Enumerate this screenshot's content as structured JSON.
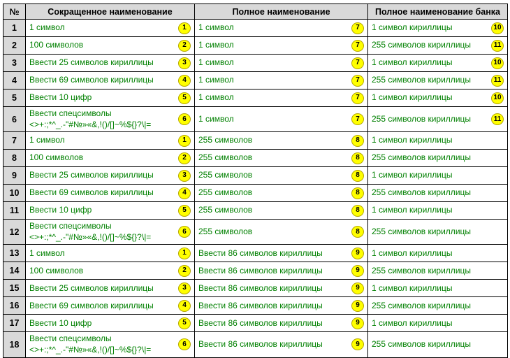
{
  "table": {
    "headers": [
      "№",
      "Сокращенное наименование",
      "Полное наименование",
      "Полное наименование банка"
    ],
    "rows": [
      {
        "num": "1",
        "tall": false,
        "short": {
          "text": "1 символ",
          "badge": "1"
        },
        "full": {
          "text": "1 символ",
          "badge": "7"
        },
        "bank": {
          "text": "1 символ кириллицы",
          "badge": "10"
        }
      },
      {
        "num": "2",
        "tall": false,
        "short": {
          "text": "100 символов",
          "badge": "2"
        },
        "full": {
          "text": "1 символ",
          "badge": "7"
        },
        "bank": {
          "text": "255 символов кириллицы",
          "badge": "11"
        }
      },
      {
        "num": "3",
        "tall": false,
        "short": {
          "text": "Ввести 25 символов кириллицы",
          "badge": "3"
        },
        "full": {
          "text": "1 символ",
          "badge": "7"
        },
        "bank": {
          "text": "1 символ кириллицы",
          "badge": "10"
        }
      },
      {
        "num": "4",
        "tall": false,
        "short": {
          "text": "Ввести 69 символов кириллицы",
          "badge": "4"
        },
        "full": {
          "text": "1 символ",
          "badge": "7"
        },
        "bank": {
          "text": "255 символов кириллицы",
          "badge": "11"
        }
      },
      {
        "num": "5",
        "tall": false,
        "short": {
          "text": "Ввести 10 цифр",
          "badge": "5"
        },
        "full": {
          "text": "1 символ",
          "badge": "7"
        },
        "bank": {
          "text": "1 символ кириллицы",
          "badge": "10"
        }
      },
      {
        "num": "6",
        "tall": true,
        "short": {
          "text": "Ввести спецсимволы\n<>+:;*^_.-\"#№»«&,!()/[]~%${}?\\|=",
          "badge": "6"
        },
        "full": {
          "text": "1 символ",
          "badge": "7"
        },
        "bank": {
          "text": "255 символов кириллицы",
          "badge": "11"
        }
      },
      {
        "num": "7",
        "tall": false,
        "short": {
          "text": "1 символ",
          "badge": "1"
        },
        "full": {
          "text": "255 символов",
          "badge": "8"
        },
        "bank": {
          "text": "1 символ кириллицы"
        }
      },
      {
        "num": "8",
        "tall": false,
        "short": {
          "text": "100 символов",
          "badge": "2"
        },
        "full": {
          "text": "255 символов",
          "badge": "8"
        },
        "bank": {
          "text": "255 символов кириллицы"
        }
      },
      {
        "num": "9",
        "tall": false,
        "short": {
          "text": "Ввести 25 символов кириллицы",
          "badge": "3"
        },
        "full": {
          "text": "255 символов",
          "badge": "8"
        },
        "bank": {
          "text": "1 символ кириллицы"
        }
      },
      {
        "num": "10",
        "tall": false,
        "short": {
          "text": "Ввести 69 символов кириллицы",
          "badge": "4"
        },
        "full": {
          "text": "255 символов",
          "badge": "8"
        },
        "bank": {
          "text": "255 символов кириллицы"
        }
      },
      {
        "num": "11",
        "tall": false,
        "short": {
          "text": "Ввести 10 цифр",
          "badge": "5"
        },
        "full": {
          "text": "255 символов",
          "badge": "8"
        },
        "bank": {
          "text": "1 символ кириллицы"
        }
      },
      {
        "num": "12",
        "tall": true,
        "short": {
          "text": "Ввести спецсимволы\n<>+:;*^_.-\"#№»«&,!()/[]~%${}?\\|=",
          "badge": "6"
        },
        "full": {
          "text": "255 символов",
          "badge": "8"
        },
        "bank": {
          "text": "255 символов кириллицы"
        }
      },
      {
        "num": "13",
        "tall": false,
        "short": {
          "text": "1 символ",
          "badge": "1"
        },
        "full": {
          "text": "Ввести 86 символов кириллицы",
          "badge": "9"
        },
        "bank": {
          "text": "1 символ кириллицы"
        }
      },
      {
        "num": "14",
        "tall": false,
        "short": {
          "text": "100 символов",
          "badge": "2"
        },
        "full": {
          "text": "Ввести 86 символов кириллицы",
          "badge": "9"
        },
        "bank": {
          "text": "255 символов кириллицы"
        }
      },
      {
        "num": "15",
        "tall": false,
        "short": {
          "text": "Ввести 25 символов кириллицы",
          "badge": "3"
        },
        "full": {
          "text": "Ввести 86 символов кириллицы",
          "badge": "9"
        },
        "bank": {
          "text": "1 символ кириллицы"
        }
      },
      {
        "num": "16",
        "tall": false,
        "short": {
          "text": "Ввести 69 символов кириллицы",
          "badge": "4"
        },
        "full": {
          "text": "Ввести 86 символов кириллицы",
          "badge": "9"
        },
        "bank": {
          "text": "255 символов кириллицы"
        }
      },
      {
        "num": "17",
        "tall": false,
        "short": {
          "text": "Ввести 10 цифр",
          "badge": "5"
        },
        "full": {
          "text": "Ввести 86 символов кириллицы",
          "badge": "9"
        },
        "bank": {
          "text": "1 символ кириллицы"
        }
      },
      {
        "num": "18",
        "tall": true,
        "short": {
          "text": "Ввести спецсимволы\n<>+:;*^_.-\"#№»«&,!()/[]~%${}?\\|=",
          "badge": "6"
        },
        "full": {
          "text": "Ввести 86 символов кириллицы",
          "badge": "9"
        },
        "bank": {
          "text": "255 символов кириллицы"
        }
      }
    ]
  },
  "colors": {
    "header_bg": "#d9d9d9",
    "num_col_bg": "#d9d9d9",
    "cell_text_green": "#008000",
    "badge_bg": "#ffff00",
    "badge_border": "#b5a800",
    "table_border": "#000000"
  }
}
